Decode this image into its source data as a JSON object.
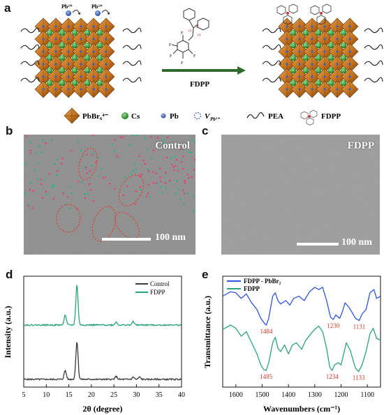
{
  "panels": {
    "a": "a",
    "b": "b",
    "c": "c",
    "d": "d",
    "e": "e"
  },
  "schematic": {
    "ion_label_1": "Pb²⁺",
    "ion_label_2": "Pb²⁺",
    "arrow_label": "FDPP",
    "legend": {
      "octahedron": "PbBr₆⁴⁻",
      "cs": "Cs",
      "pb": "Pb",
      "vacancy": "V",
      "vacancy_sub": "Pb²⁺",
      "pea": "PEA",
      "fdpp": "FDPP"
    },
    "colors": {
      "octahedron": "#c87828",
      "octahedron_dark": "#8a4d12",
      "cs": "#3a9a3a",
      "pb": "#3d63b8",
      "arrow": "#2f6b2a"
    }
  },
  "tem": {
    "control_title": "Control",
    "fdpp_title": "FDPP",
    "scale_control": "100 nm",
    "scale_fdpp": "100 nm"
  },
  "chart_data": [
    {
      "type": "line",
      "panel": "d",
      "xlabel": "2θ (degree)",
      "ylabel": "Intensity (a.u.)",
      "xlim": [
        5,
        40
      ],
      "xticks": [
        5,
        10,
        15,
        20,
        25,
        30,
        35,
        40
      ],
      "legend_position": "top-right",
      "series": [
        {
          "name": "Control",
          "color": "#3a3a3a",
          "baseline": 0.07,
          "peaks": [
            {
              "x": 14.2,
              "height": 0.08
            },
            {
              "x": 16.8,
              "height": 0.34
            },
            {
              "x": 25.5,
              "height": 0.025
            },
            {
              "x": 29.3,
              "height": 0.02
            },
            {
              "x": 30.7,
              "height": 0.02
            }
          ]
        },
        {
          "name": "FDPP",
          "color": "#2ea37a",
          "baseline": 0.56,
          "peaks": [
            {
              "x": 14.2,
              "height": 0.09
            },
            {
              "x": 16.8,
              "height": 0.36
            },
            {
              "x": 25.5,
              "height": 0.025
            },
            {
              "x": 29.3,
              "height": 0.03
            }
          ]
        }
      ]
    },
    {
      "type": "line",
      "panel": "e",
      "xlabel": "Wavenumbers (cm⁻¹)",
      "ylabel": "Transmittance (a.u.)",
      "xlim": [
        1650,
        1050
      ],
      "xticks": [
        1600,
        1500,
        1400,
        1300,
        1200,
        1100
      ],
      "legend_position": "top-left",
      "series": [
        {
          "name": "FDPP - PbBr₂",
          "color": "#2f56d8",
          "points": [
            [
              1650,
              0.82
            ],
            [
              1620,
              0.86
            ],
            [
              1600,
              0.85
            ],
            [
              1580,
              0.8
            ],
            [
              1560,
              0.84
            ],
            [
              1540,
              0.76
            ],
            [
              1520,
              0.7
            ],
            [
              1505,
              0.62
            ],
            [
              1490,
              0.57
            ],
            [
              1484,
              0.56
            ],
            [
              1475,
              0.62
            ],
            [
              1460,
              0.82
            ],
            [
              1450,
              0.85
            ],
            [
              1440,
              0.78
            ],
            [
              1430,
              0.75
            ],
            [
              1410,
              0.78
            ],
            [
              1395,
              0.74
            ],
            [
              1380,
              0.8
            ],
            [
              1360,
              0.82
            ],
            [
              1340,
              0.78
            ],
            [
              1320,
              0.86
            ],
            [
              1300,
              0.9
            ],
            [
              1285,
              0.88
            ],
            [
              1270,
              0.9
            ],
            [
              1255,
              0.78
            ],
            [
              1240,
              0.63
            ],
            [
              1230,
              0.61
            ],
            [
              1220,
              0.65
            ],
            [
              1205,
              0.62
            ],
            [
              1195,
              0.68
            ],
            [
              1185,
              0.76
            ],
            [
              1170,
              0.72
            ],
            [
              1160,
              0.68
            ],
            [
              1145,
              0.62
            ],
            [
              1131,
              0.6
            ],
            [
              1120,
              0.66
            ],
            [
              1105,
              0.7
            ],
            [
              1090,
              0.85
            ],
            [
              1075,
              0.88
            ],
            [
              1065,
              0.8
            ],
            [
              1050,
              0.82
            ]
          ]
        },
        {
          "name": "FDPP",
          "color": "#2ea37a",
          "points": [
            [
              1650,
              0.52
            ],
            [
              1620,
              0.56
            ],
            [
              1600,
              0.53
            ],
            [
              1580,
              0.46
            ],
            [
              1560,
              0.5
            ],
            [
              1540,
              0.4
            ],
            [
              1520,
              0.3
            ],
            [
              1505,
              0.2
            ],
            [
              1495,
              0.16
            ],
            [
              1485,
              0.15
            ],
            [
              1475,
              0.22
            ],
            [
              1460,
              0.4
            ],
            [
              1450,
              0.45
            ],
            [
              1440,
              0.35
            ],
            [
              1430,
              0.32
            ],
            [
              1415,
              0.38
            ],
            [
              1400,
              0.3
            ],
            [
              1385,
              0.38
            ],
            [
              1370,
              0.4
            ],
            [
              1350,
              0.34
            ],
            [
              1335,
              0.42
            ],
            [
              1315,
              0.48
            ],
            [
              1300,
              0.52
            ],
            [
              1285,
              0.55
            ],
            [
              1270,
              0.5
            ],
            [
              1255,
              0.35
            ],
            [
              1243,
              0.18
            ],
            [
              1234,
              0.15
            ],
            [
              1225,
              0.2
            ],
            [
              1210,
              0.22
            ],
            [
              1200,
              0.2
            ],
            [
              1190,
              0.3
            ],
            [
              1180,
              0.4
            ],
            [
              1165,
              0.33
            ],
            [
              1155,
              0.25
            ],
            [
              1145,
              0.17
            ],
            [
              1133,
              0.14
            ],
            [
              1120,
              0.2
            ],
            [
              1105,
              0.32
            ],
            [
              1090,
              0.48
            ],
            [
              1078,
              0.53
            ],
            [
              1065,
              0.44
            ],
            [
              1050,
              0.42
            ]
          ]
        }
      ],
      "annotations": [
        {
          "text": "1484",
          "x": 1484,
          "series": 0
        },
        {
          "text": "1230",
          "x": 1230,
          "series": 0
        },
        {
          "text": "1131",
          "x": 1131,
          "series": 0
        },
        {
          "text": "1485",
          "x": 1485,
          "series": 1
        },
        {
          "text": "1234",
          "x": 1234,
          "series": 1
        },
        {
          "text": "1133",
          "x": 1133,
          "series": 1
        }
      ],
      "annotation_color": "#d0392b"
    }
  ]
}
